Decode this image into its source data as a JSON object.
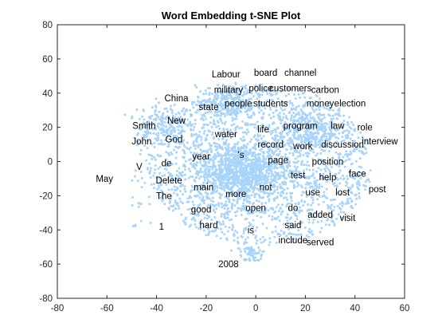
{
  "colors": {
    "background": "#ffffff",
    "axis": "#262626",
    "point": "#a9d4fa",
    "text": "#000000"
  },
  "chart_data": {
    "type": "scatter",
    "title": "Word Embedding t-SNE Plot",
    "xlabel": "",
    "ylabel": "",
    "xlim": [
      -80,
      60
    ],
    "ylim": [
      -80,
      80
    ],
    "x_ticks": [
      -80,
      -60,
      -40,
      -20,
      0,
      20,
      40,
      60
    ],
    "y_ticks": [
      -80,
      -60,
      -40,
      -20,
      0,
      20,
      40,
      60,
      80
    ],
    "x_tick_labels": [
      "-80",
      "-60",
      "-40",
      "-20",
      "0",
      "20",
      "40",
      "60"
    ],
    "y_tick_labels": [
      "-80",
      "-60",
      "-40",
      "-20",
      "0",
      "20",
      "40",
      "60",
      "80"
    ],
    "grid": false,
    "labels": [
      {
        "word": "Labour",
        "x": -12,
        "y": 51
      },
      {
        "word": "board",
        "x": 4,
        "y": 52
      },
      {
        "word": "channel",
        "x": 18,
        "y": 52
      },
      {
        "word": "military",
        "x": -11,
        "y": 42
      },
      {
        "word": "police",
        "x": 2,
        "y": 43
      },
      {
        "word": "customers",
        "x": 14,
        "y": 43
      },
      {
        "word": "carbon",
        "x": 28,
        "y": 42
      },
      {
        "word": "China",
        "x": -32,
        "y": 37
      },
      {
        "word": "state",
        "x": -19,
        "y": 32
      },
      {
        "word": "people",
        "x": -7,
        "y": 34
      },
      {
        "word": "students",
        "x": 6,
        "y": 34
      },
      {
        "word": "money",
        "x": 26,
        "y": 34
      },
      {
        "word": "election",
        "x": 38,
        "y": 34
      },
      {
        "word": "New",
        "x": -32,
        "y": 24
      },
      {
        "word": "Smith",
        "x": -45,
        "y": 21
      },
      {
        "word": "life",
        "x": 3,
        "y": 19
      },
      {
        "word": "program",
        "x": 18,
        "y": 21
      },
      {
        "word": "law",
        "x": 33,
        "y": 21
      },
      {
        "word": "role",
        "x": 44,
        "y": 20
      },
      {
        "word": "water",
        "x": -12,
        "y": 16
      },
      {
        "word": "John",
        "x": -46,
        "y": 12
      },
      {
        "word": "God",
        "x": -33,
        "y": 13
      },
      {
        "word": "interview",
        "x": 50,
        "y": 12
      },
      {
        "word": "record",
        "x": 6,
        "y": 10
      },
      {
        "word": "work",
        "x": 19,
        "y": 9
      },
      {
        "word": "discussion",
        "x": 35,
        "y": 10
      },
      {
        "word": "'s",
        "x": -6,
        "y": 4
      },
      {
        "word": "year",
        "x": -22,
        "y": 3
      },
      {
        "word": "de",
        "x": -36,
        "y": -1
      },
      {
        "word": "page",
        "x": 9,
        "y": 1
      },
      {
        "word": "position",
        "x": 29,
        "y": 0
      },
      {
        "word": "V",
        "x": -47,
        "y": -3
      },
      {
        "word": "test",
        "x": 17,
        "y": -8
      },
      {
        "word": "help",
        "x": 29,
        "y": -9
      },
      {
        "word": "face",
        "x": 41,
        "y": -7
      },
      {
        "word": "May",
        "x": -61,
        "y": -10
      },
      {
        "word": "Delete",
        "x": -35,
        "y": -11
      },
      {
        "word": "not",
        "x": 4,
        "y": -15
      },
      {
        "word": "main",
        "x": -21,
        "y": -15
      },
      {
        "word": "post",
        "x": 49,
        "y": -16
      },
      {
        "word": "more",
        "x": -8,
        "y": -19
      },
      {
        "word": "use",
        "x": 23,
        "y": -18
      },
      {
        "word": "lost",
        "x": 35,
        "y": -18
      },
      {
        "word": "The",
        "x": -37,
        "y": -20
      },
      {
        "word": "open",
        "x": 0,
        "y": -27
      },
      {
        "word": "do",
        "x": 15,
        "y": -27
      },
      {
        "word": "good",
        "x": -22,
        "y": -28
      },
      {
        "word": "added",
        "x": 26,
        "y": -31
      },
      {
        "word": "visit",
        "x": 37,
        "y": -33
      },
      {
        "word": "hard",
        "x": -19,
        "y": -37
      },
      {
        "word": "said",
        "x": 15,
        "y": -37
      },
      {
        "word": "1",
        "x": -38,
        "y": -38
      },
      {
        "word": "is",
        "x": -2,
        "y": -40
      },
      {
        "word": "include",
        "x": 15,
        "y": -46
      },
      {
        "word": "served",
        "x": 26,
        "y": -47
      },
      {
        "word": "2008",
        "x": -11,
        "y": -60
      }
    ]
  }
}
